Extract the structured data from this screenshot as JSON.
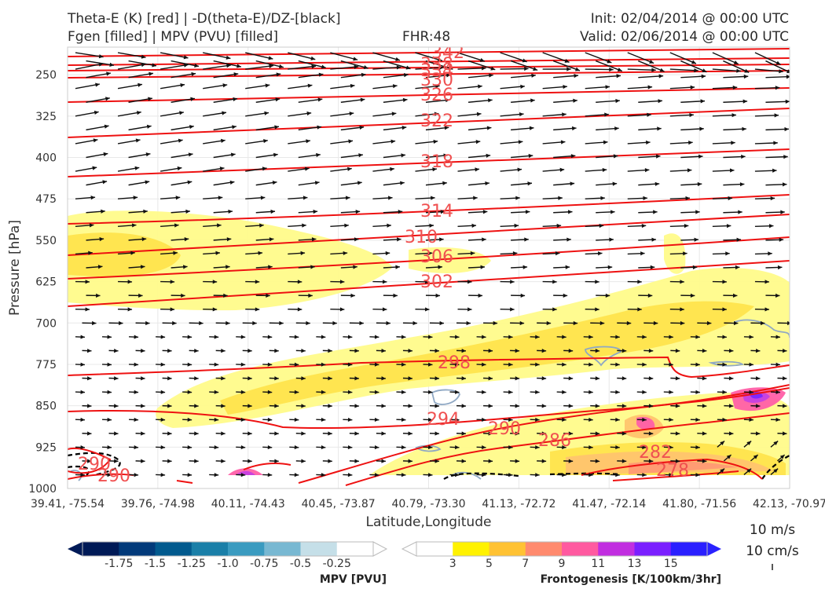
{
  "header": {
    "title_line1": "Theta-E (K) [red] | -D(theta-E)/DZ-[black]",
    "title_line2": "Fgen [filled] | MPV (PVU) [filled]",
    "fhr": "FHR:48",
    "init": "Init: 02/04/2014 @ 00:00 UTC",
    "valid": "Valid: 02/06/2014 @ 00:00 UTC"
  },
  "wind_key": {
    "horizontal": "10 m/s",
    "vertical": "10 cm/s"
  },
  "colors": {
    "theta_e": "#ee1111",
    "dtheta_dz": "#000000",
    "mpv_contour": "#8fa8c4",
    "fgen": [
      "#fffb8a",
      "#ffe44d",
      "#ffc46e",
      "#ff9a74",
      "#ff5fa8",
      "#c640e0",
      "#7a27ff",
      "#2a22ff"
    ],
    "mpv": [
      "#001a57",
      "#023a7a",
      "#025a8e",
      "#1a7fa8",
      "#3a9bc0",
      "#78b8d2",
      "#c5dfe8",
      "#ffffff"
    ]
  },
  "chart_data": {
    "type": "cross-section",
    "xlabel": "Latitude,Longitude",
    "ylabel": "Pressure [hPa]",
    "x_ticks": [
      "39.41, -75.54",
      "39.76, -74.98",
      "40.11, -74.43",
      "40.45, -73.87",
      "40.79, -73.30",
      "41.13, -72.72",
      "41.47, -72.14",
      "41.80, -71.56",
      "42.13, -70.97"
    ],
    "y_ticks": [
      250,
      325,
      400,
      475,
      550,
      625,
      700,
      775,
      850,
      925,
      1000
    ],
    "ylim": [
      1000,
      200
    ],
    "theta_e_labels": [
      "342",
      "338",
      "334",
      "330",
      "326",
      "322",
      "318",
      "314",
      "310",
      "306",
      "302",
      "298",
      "294",
      "290",
      "286",
      "282",
      "278",
      "290",
      "290"
    ],
    "mpv_colorbar": {
      "label": "MPV [PVU]",
      "ticks": [
        "-1.75",
        "-1.5",
        "-1.25",
        "-1.0",
        "-0.75",
        "-0.5",
        "-0.25"
      ]
    },
    "fgen_colorbar": {
      "label": "Frontogenesis [K/100km/3hr]",
      "ticks": [
        "3",
        "5",
        "7",
        "9",
        "11",
        "13",
        "15"
      ]
    }
  }
}
